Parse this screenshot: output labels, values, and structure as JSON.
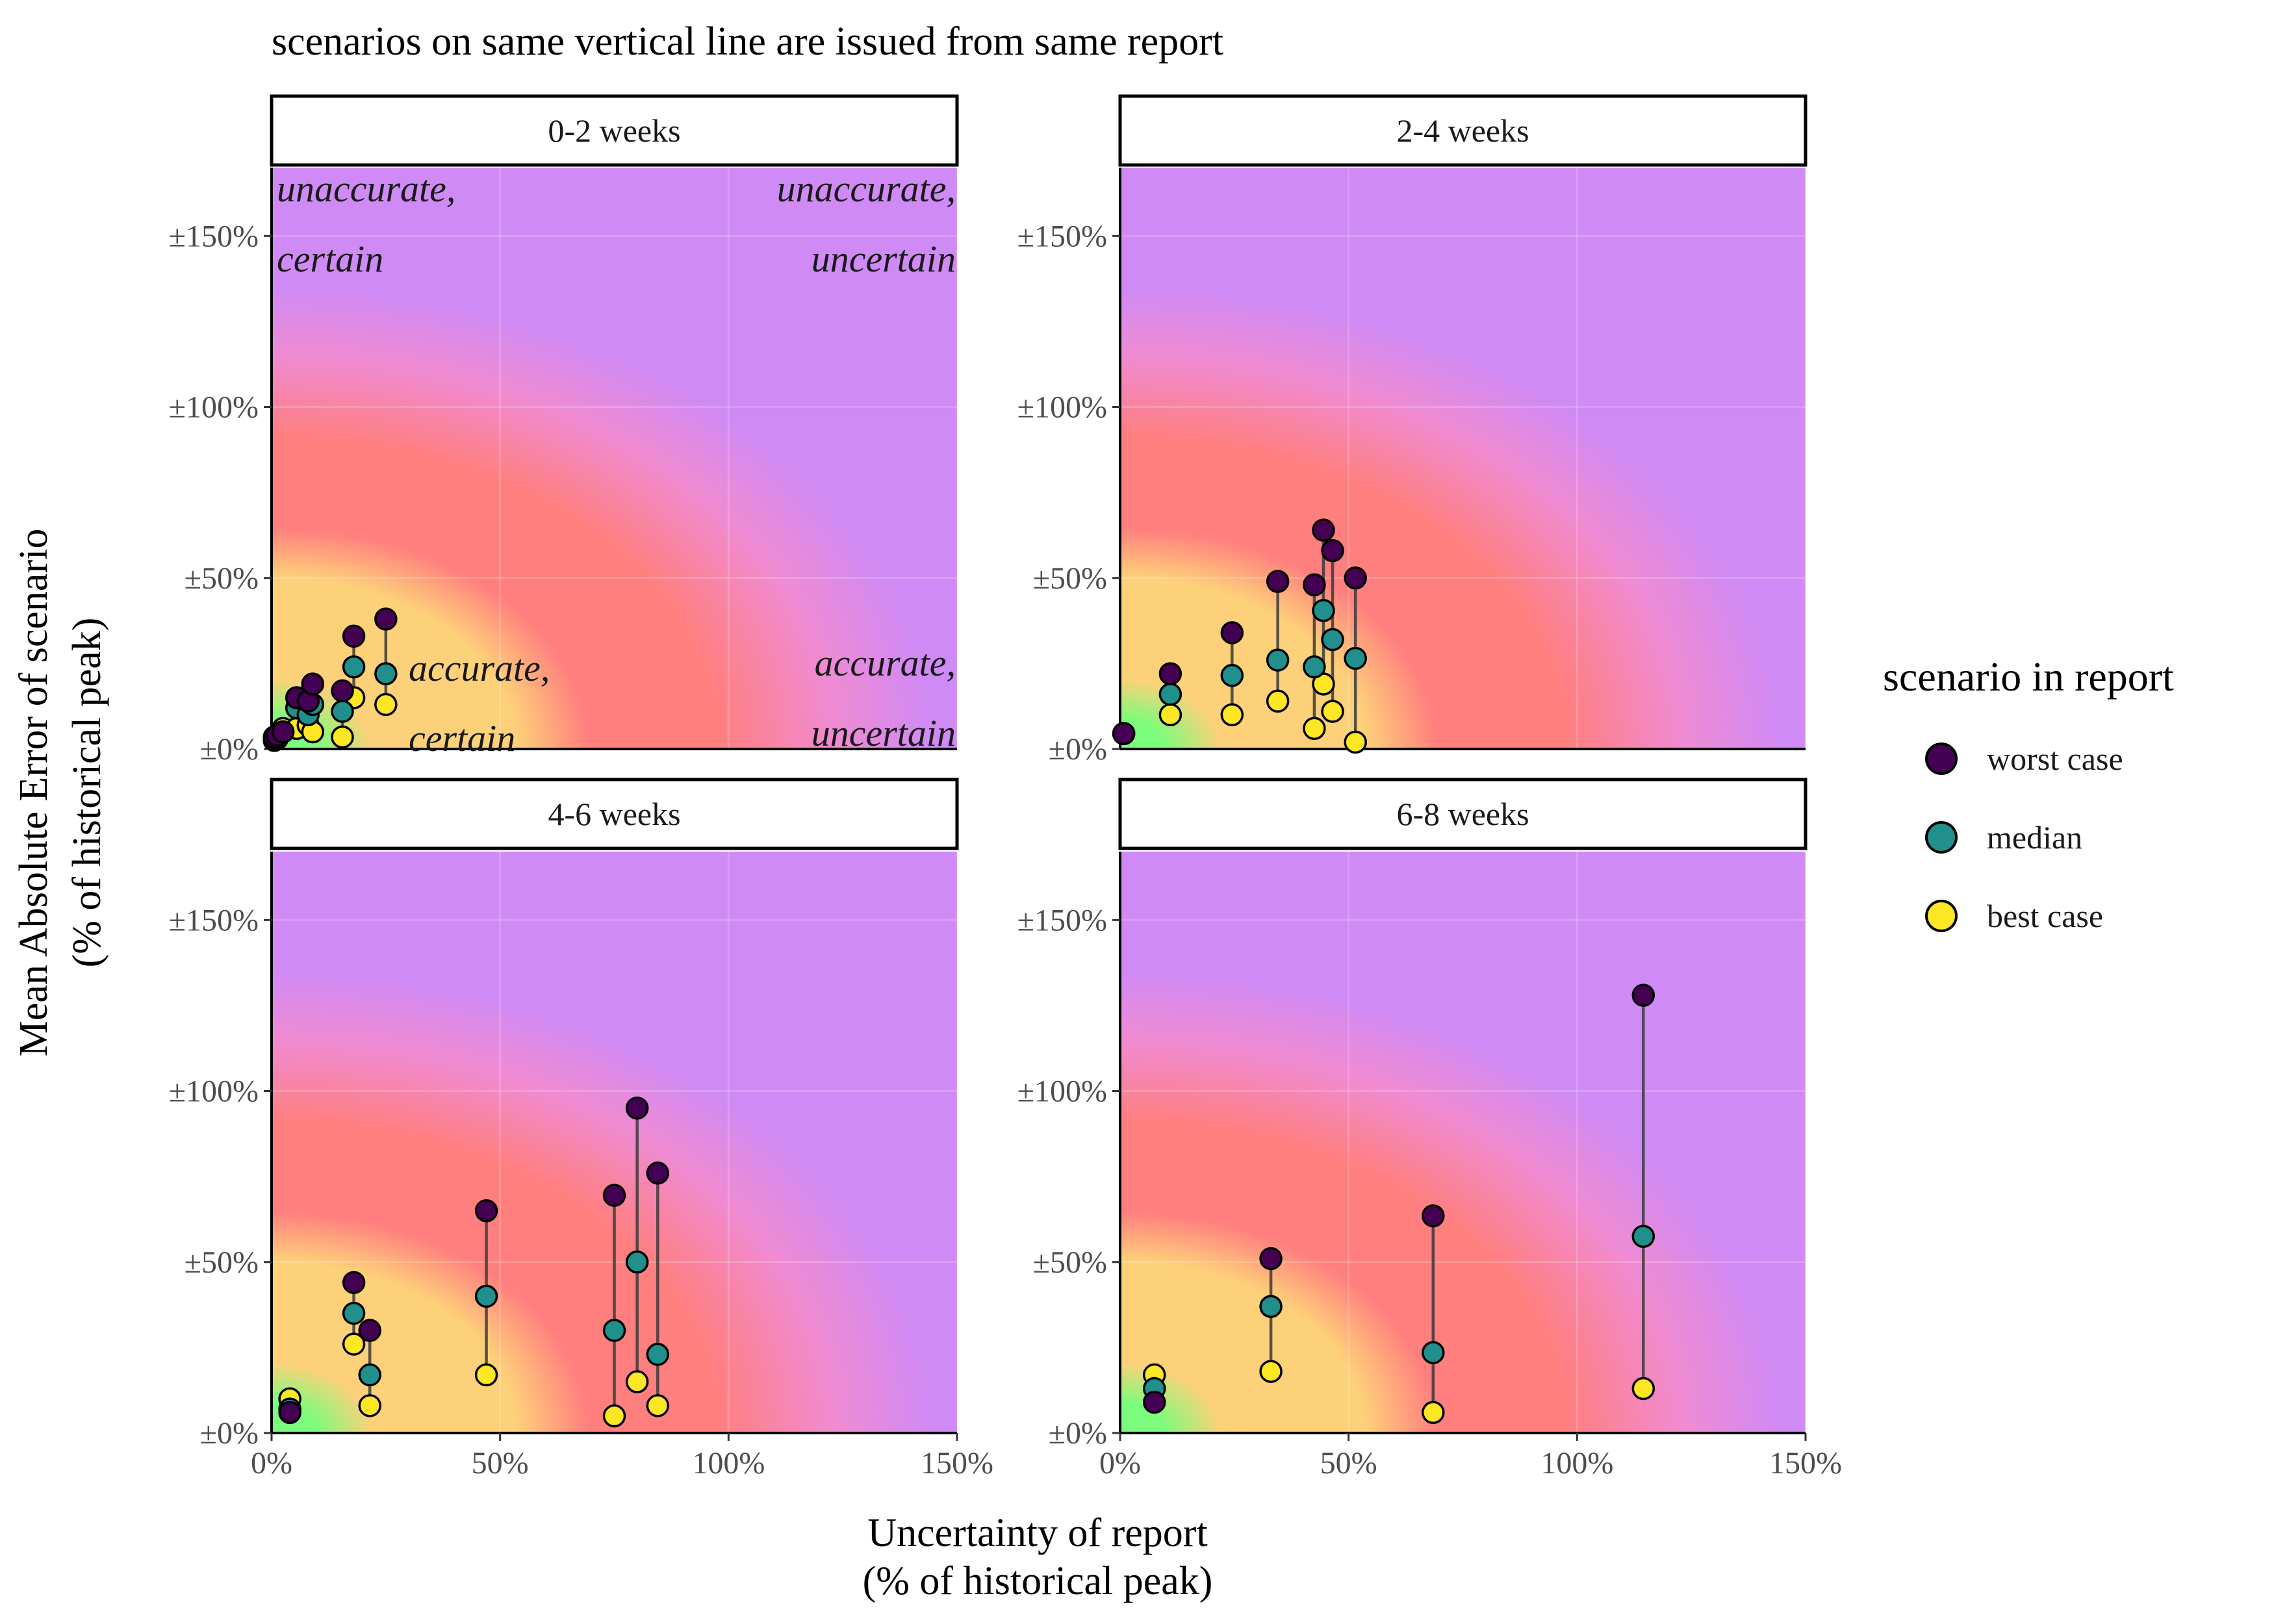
{
  "subtitle": "scenarios on same vertical line are issued from same report",
  "chart_data": {
    "type": "scatter",
    "facet_wrap": true,
    "xlabel_lines": [
      "Uncertainty of report",
      "(% of historical peak)"
    ],
    "ylabel_lines": [
      "Mean Absolute Error of scenario",
      "(% of historical peak)"
    ],
    "xlim": [
      0,
      150
    ],
    "ylim": [
      0,
      170
    ],
    "x_ticks": [
      {
        "value": 0,
        "label": "0%"
      },
      {
        "value": 50,
        "label": "50%"
      },
      {
        "value": 100,
        "label": "100%"
      },
      {
        "value": 150,
        "label": "150%"
      }
    ],
    "y_ticks": [
      {
        "value": 0,
        "label": "±0%"
      },
      {
        "value": 50,
        "label": "±50%"
      },
      {
        "value": 100,
        "label": "±100%"
      },
      {
        "value": 150,
        "label": "±150%"
      }
    ],
    "grid": true,
    "background": "radial gradient centered at origin: green → yellow → red → purple",
    "legend": {
      "title": "scenario in report",
      "position": "right",
      "items": [
        {
          "key": "worst",
          "label": "worst case",
          "color": "#440154"
        },
        {
          "key": "median",
          "label": "median",
          "color": "#21908C"
        },
        {
          "key": "best",
          "label": "best case",
          "color": "#FDE725"
        }
      ]
    },
    "colors": {
      "worst": "#440154",
      "median": "#21908C",
      "best": "#FDE725",
      "segment": "#3a3a3a",
      "green": "#7cfc7c",
      "yellow": "#fdd17a",
      "red": "#ff7f7f",
      "pink": "#f08bd2",
      "purple": "#cf8af5"
    },
    "annotations": [
      {
        "lines": [
          "unaccurate,",
          "certain"
        ],
        "corner": "top-left"
      },
      {
        "lines": [
          "unaccurate,",
          "uncertain"
        ],
        "corner": "top-right"
      },
      {
        "lines": [
          "accurate,",
          "certain"
        ],
        "corner": "bottom-left"
      },
      {
        "lines": [
          "accurate,",
          "uncertain"
        ],
        "corner": "bottom-right"
      }
    ],
    "panels": [
      {
        "title": "0-2 weeks",
        "reports": [
          {
            "x": 0.6,
            "worst": 3.5,
            "median": 3,
            "best": 2.5
          },
          {
            "x": 1.2,
            "worst": 4,
            "median": 3.5,
            "best": 3
          },
          {
            "x": 2.5,
            "worst": 5,
            "median": 5,
            "best": 6
          },
          {
            "x": 5.5,
            "worst": 15,
            "median": 12,
            "best": 6
          },
          {
            "x": 8,
            "worst": 14,
            "median": 10,
            "best": 7
          },
          {
            "x": 9,
            "worst": 19,
            "median": 13,
            "best": 5
          },
          {
            "x": 15.5,
            "worst": 17,
            "median": 11,
            "best": 3.5
          },
          {
            "x": 18,
            "worst": 33,
            "median": 24,
            "best": 15
          },
          {
            "x": 25,
            "worst": 38,
            "median": 22,
            "best": 13
          }
        ]
      },
      {
        "title": "2-4 weeks",
        "reports": [
          {
            "x": 0.8,
            "worst": 4.5,
            "median": 4.5,
            "best": 4.5
          },
          {
            "x": 11,
            "worst": 22,
            "median": 16,
            "best": 10
          },
          {
            "x": 24.5,
            "worst": 34,
            "median": 21.5,
            "best": 10
          },
          {
            "x": 34.5,
            "worst": 49,
            "median": 26,
            "best": 14
          },
          {
            "x": 42.5,
            "worst": 48,
            "median": 24,
            "best": 6
          },
          {
            "x": 44.5,
            "worst": 64,
            "median": 40.5,
            "best": 19
          },
          {
            "x": 46.5,
            "worst": 58,
            "median": 32,
            "best": 11
          },
          {
            "x": 51.5,
            "worst": 50,
            "median": 26.5,
            "best": 2
          }
        ]
      },
      {
        "title": "4-6 weeks",
        "reports": [
          {
            "x": 4,
            "worst": 6,
            "median": 7,
            "best": 10
          },
          {
            "x": 18,
            "worst": 44,
            "median": 35,
            "best": 26
          },
          {
            "x": 21.5,
            "worst": 30,
            "median": 17,
            "best": 8
          },
          {
            "x": 47,
            "worst": 65,
            "median": 40,
            "best": 17
          },
          {
            "x": 75,
            "worst": 69.5,
            "median": 30,
            "best": 5
          },
          {
            "x": 80,
            "worst": 95,
            "median": 50,
            "best": 15
          },
          {
            "x": 84.5,
            "worst": 76,
            "median": 23,
            "best": 8
          }
        ]
      },
      {
        "title": "6-8 weeks",
        "reports": [
          {
            "x": 7.5,
            "worst": 9,
            "median": 13,
            "best": 17
          },
          {
            "x": 33,
            "worst": 51,
            "median": 37,
            "best": 18
          },
          {
            "x": 68.5,
            "worst": 63.5,
            "median": 23.5,
            "best": 6
          },
          {
            "x": 114.5,
            "worst": 128,
            "median": 57.5,
            "best": 13
          }
        ]
      }
    ]
  }
}
